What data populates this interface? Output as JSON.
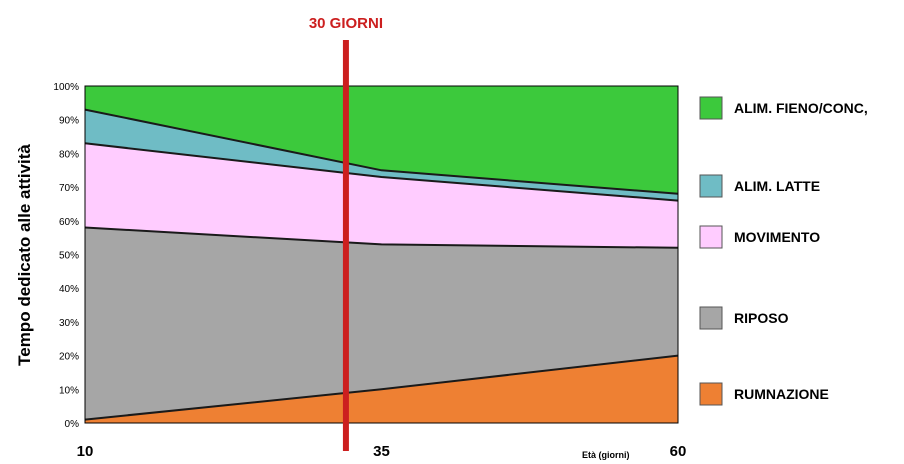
{
  "chart_data": {
    "type": "area",
    "stacked": true,
    "x": [
      10,
      35,
      60
    ],
    "x_tick_labels": [
      "10",
      "35",
      "60"
    ],
    "xlabel": "Età (giorni)",
    "ylabel": "Tempo dedicato alle attività",
    "y_tick_labels": [
      "0%",
      "10%",
      "20%",
      "30%",
      "40%",
      "50%",
      "60%",
      "70%",
      "80%",
      "90%",
      "100%"
    ],
    "ylim": [
      0,
      100
    ],
    "xlim": [
      10,
      60
    ],
    "series": [
      {
        "name": "RUMNAZIONE",
        "color": "#ee8033",
        "values_at_x": [
          1,
          10,
          20
        ]
      },
      {
        "name": "RIPOSO",
        "color": "#a6a6a6",
        "values_at_x": [
          57,
          43,
          32
        ]
      },
      {
        "name": "MOVIMENTO",
        "color": "#ffccff",
        "values_at_x": [
          25,
          20,
          14
        ]
      },
      {
        "name": "ALIM. LATTE",
        "color": "#6fbcc5",
        "values_at_x": [
          10,
          2,
          2
        ]
      },
      {
        "name": "ALIM. FIENO/CONC,",
        "color": "#3cc93c",
        "values_at_x": [
          7,
          25,
          32
        ]
      }
    ],
    "marker": {
      "x": 32,
      "label": "30 GIORNI",
      "color": "#cc1f1f"
    },
    "legend_position": "right"
  }
}
